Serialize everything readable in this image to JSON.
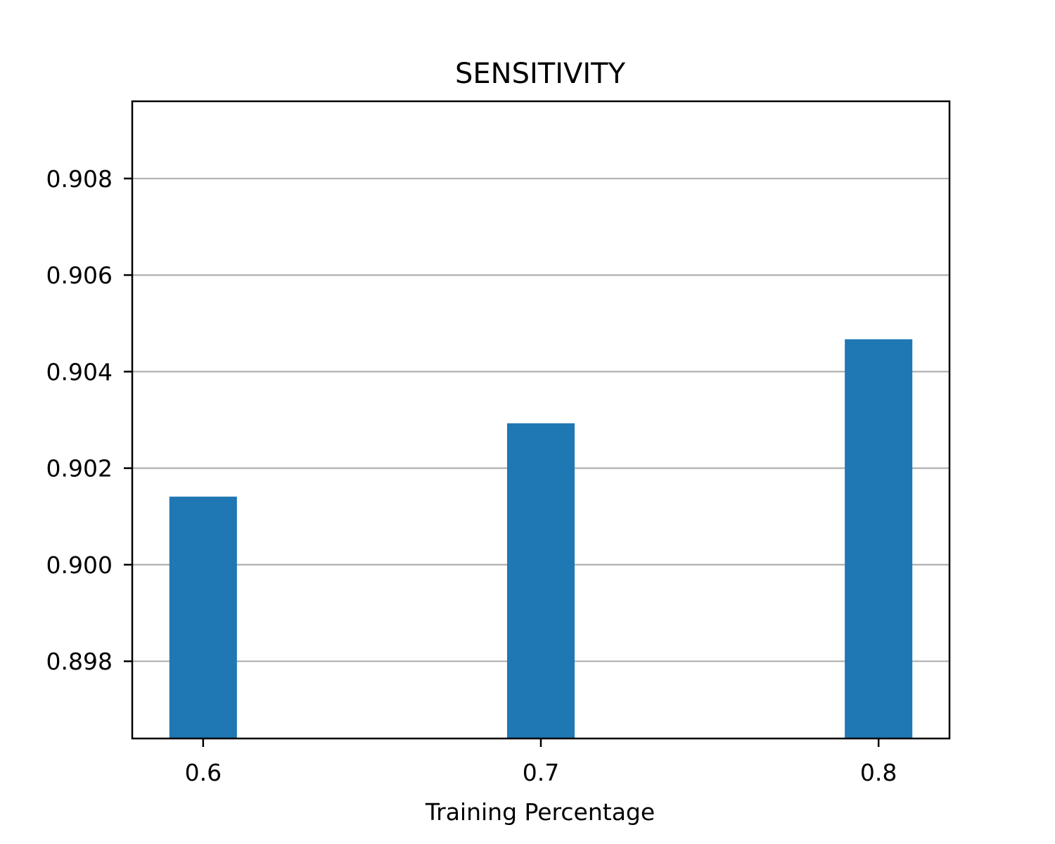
{
  "chart_data": {
    "type": "bar",
    "title": "SENSITIVITY",
    "xlabel": "Training Percentage",
    "ylabel": "",
    "categories": [
      "0.6",
      "0.7",
      "0.8"
    ],
    "x": [
      0.6,
      0.7,
      0.8
    ],
    "values": [
      0.90141,
      0.90293,
      0.90467
    ],
    "ylim": [
      0.8964,
      0.9096
    ],
    "xlim": [
      0.579,
      0.821
    ],
    "yticks": [
      0.898,
      0.9,
      0.902,
      0.904,
      0.906,
      0.908
    ],
    "ytick_labels": [
      "0.898",
      "0.900",
      "0.902",
      "0.904",
      "0.906",
      "0.908"
    ],
    "xticks": [
      0.6,
      0.7,
      0.8
    ],
    "xtick_labels": [
      "0.6",
      "0.7",
      "0.8"
    ],
    "bar_width": 0.02,
    "grid": "horizontal",
    "legend": "none",
    "colors": {
      "bar": "#1f77b4",
      "grid": "#b0b0b0",
      "axis": "#000000"
    }
  }
}
